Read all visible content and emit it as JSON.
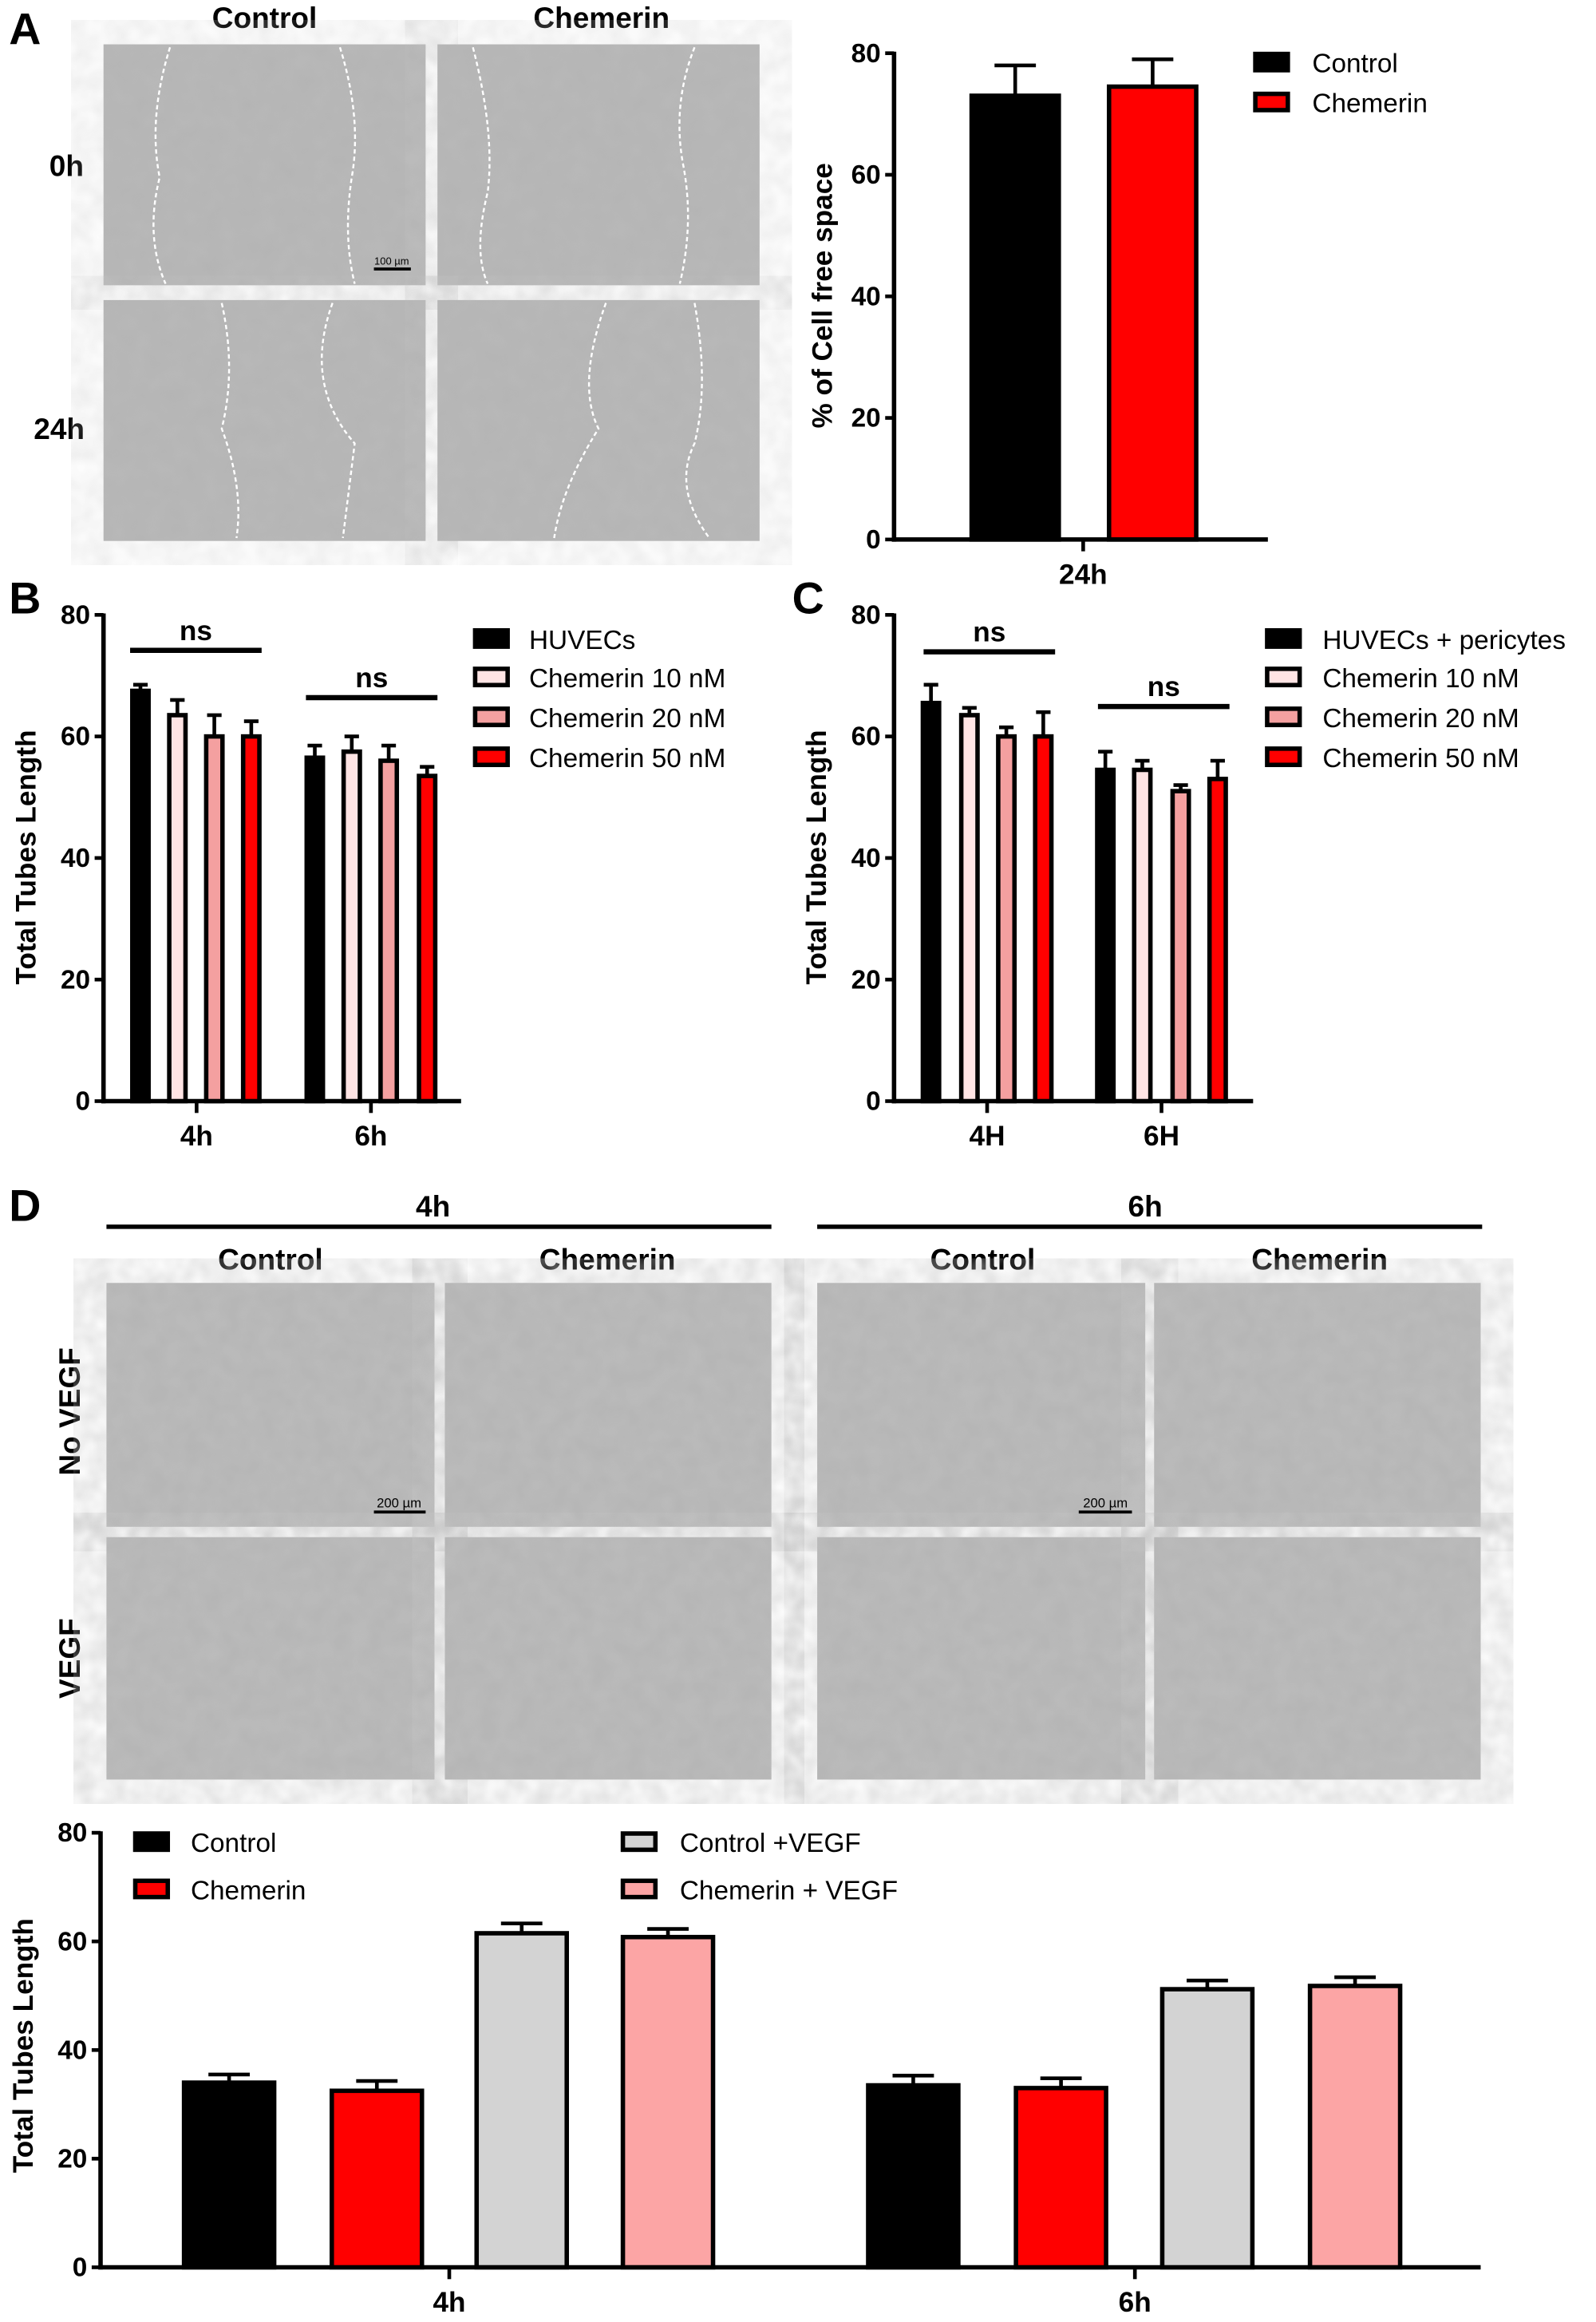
{
  "panels": {
    "a": "A",
    "b": "B",
    "c": "C",
    "d": "D"
  },
  "panel_a_images": {
    "col_headers": [
      "Control",
      "Chemerin"
    ],
    "row_labels": [
      "0h",
      "24h"
    ],
    "scale_bar": "100 µm"
  },
  "panel_d_images": {
    "time_headers": [
      "4h",
      "6h"
    ],
    "col_headers": [
      "Control",
      "Chemerin",
      "Control",
      "Chemerin"
    ],
    "row_labels": [
      "No VEGF",
      "VEGF"
    ],
    "scale_bar": "200 µm"
  },
  "chart_data": [
    {
      "id": "A",
      "type": "bar",
      "ylabel": "% of Cell free space",
      "ylim": [
        0,
        80
      ],
      "yticks": [
        0,
        20,
        40,
        60,
        80
      ],
      "categories": [
        "24h"
      ],
      "series": [
        {
          "name": "Control",
          "color": "#000000",
          "values": [
            73
          ],
          "errors": [
            5
          ]
        },
        {
          "name": "Chemerin",
          "color": "#ff0000",
          "values": [
            74.5
          ],
          "errors": [
            4.5
          ]
        }
      ],
      "legend": "top-right"
    },
    {
      "id": "B",
      "type": "bar",
      "ylabel": "Total Tubes Length",
      "ylim": [
        0,
        80
      ],
      "yticks": [
        0,
        20,
        40,
        60,
        80
      ],
      "categories": [
        "4h",
        "6h"
      ],
      "annotations": [
        "ns",
        "ns"
      ],
      "series": [
        {
          "name": "HUVECs",
          "color": "#000000",
          "values": [
            67.5,
            56.5
          ],
          "errors": [
            1,
            2
          ]
        },
        {
          "name": "Chemerin 10 nM",
          "color": "#ffe4e4",
          "values": [
            63.5,
            57.5
          ],
          "errors": [
            2.5,
            2.5
          ]
        },
        {
          "name": "Chemerin 20 nM",
          "color": "#f4a0a0",
          "values": [
            60,
            56
          ],
          "errors": [
            3.5,
            2.5
          ]
        },
        {
          "name": "Chemerin 50 nM",
          "color": "#ff0000",
          "values": [
            60,
            53.5
          ],
          "errors": [
            2.5,
            1.5
          ]
        }
      ],
      "legend": "top-right"
    },
    {
      "id": "C",
      "type": "bar",
      "ylabel": "Total Tubes Length",
      "ylim": [
        0,
        80
      ],
      "yticks": [
        0,
        20,
        40,
        60,
        80
      ],
      "categories": [
        "4H",
        "6H"
      ],
      "annotations": [
        "ns",
        "ns"
      ],
      "series": [
        {
          "name": "HUVECs + pericytes",
          "color": "#000000",
          "values": [
            65.5,
            54.5
          ],
          "errors": [
            3,
            3
          ]
        },
        {
          "name": "Chemerin 10 nM",
          "color": "#ffe4e4",
          "values": [
            63.5,
            54.5
          ],
          "errors": [
            1.2,
            1.5
          ]
        },
        {
          "name": "Chemerin 20 nM",
          "color": "#f4a0a0",
          "values": [
            60,
            51
          ],
          "errors": [
            1.5,
            1
          ]
        },
        {
          "name": "Chemerin 50 nM",
          "color": "#ff0000",
          "values": [
            60,
            53
          ],
          "errors": [
            4,
            3
          ]
        }
      ],
      "legend": "top-right"
    },
    {
      "id": "D",
      "type": "bar",
      "ylabel": "Total Tubes Length",
      "ylim": [
        0,
        80
      ],
      "yticks": [
        0,
        20,
        40,
        60,
        80
      ],
      "categories": [
        "4h",
        "6h"
      ],
      "series": [
        {
          "name": "Control",
          "color": "#000000",
          "values": [
            34,
            33.5
          ],
          "errors": [
            1.5,
            1.8
          ]
        },
        {
          "name": "Chemerin",
          "color": "#ff0000",
          "values": [
            32.5,
            33
          ],
          "errors": [
            1.8,
            1.8
          ]
        },
        {
          "name": "Control +VEGF",
          "color": "#d3d3d3",
          "values": [
            61.5,
            51.2
          ],
          "errors": [
            1.8,
            1.6
          ]
        },
        {
          "name": "Chemerin + VEGF",
          "color": "#fca5a5",
          "values": [
            60.8,
            51.8
          ],
          "errors": [
            1.5,
            1.6
          ]
        }
      ],
      "legend": "top"
    }
  ]
}
